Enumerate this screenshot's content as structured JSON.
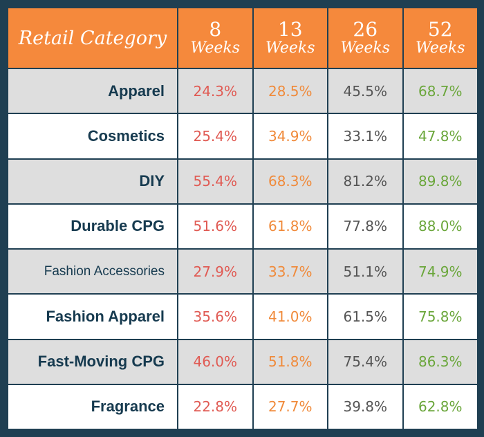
{
  "header": {
    "category_label": "Retail Category",
    "weeks": [
      {
        "number": "8",
        "label": "Weeks"
      },
      {
        "number": "13",
        "label": "Weeks"
      },
      {
        "number": "26",
        "label": "Weeks"
      },
      {
        "number": "52",
        "label": "Weeks"
      }
    ]
  },
  "colors": {
    "header_bg": "#f5893c",
    "border": "#1f3f52",
    "row_shade": "#dedede",
    "w8": "#e05a53",
    "w13": "#f08a3a",
    "w26": "#555555",
    "w52": "#6aa63a"
  },
  "rows": [
    {
      "category": "Apparel",
      "values": [
        "24.3%",
        "28.5%",
        "45.5%",
        "68.7%"
      ]
    },
    {
      "category": "Cosmetics",
      "values": [
        "25.4%",
        "34.9%",
        "33.1%",
        "47.8%"
      ]
    },
    {
      "category": "DIY",
      "values": [
        "55.4%",
        "68.3%",
        "81.2%",
        "89.8%"
      ]
    },
    {
      "category": "Durable CPG",
      "values": [
        "51.6%",
        "61.8%",
        "77.8%",
        "88.0%"
      ]
    },
    {
      "category": "Fashion Accessories",
      "values": [
        "27.9%",
        "33.7%",
        "51.1%",
        "74.9%"
      ]
    },
    {
      "category": "Fashion Apparel",
      "values": [
        "35.6%",
        "41.0%",
        "61.5%",
        "75.8%"
      ]
    },
    {
      "category": "Fast-Moving CPG",
      "values": [
        "46.0%",
        "51.8%",
        "75.4%",
        "86.3%"
      ]
    },
    {
      "category": "Fragrance",
      "values": [
        "22.8%",
        "27.7%",
        "39.8%",
        "62.8%"
      ]
    }
  ]
}
